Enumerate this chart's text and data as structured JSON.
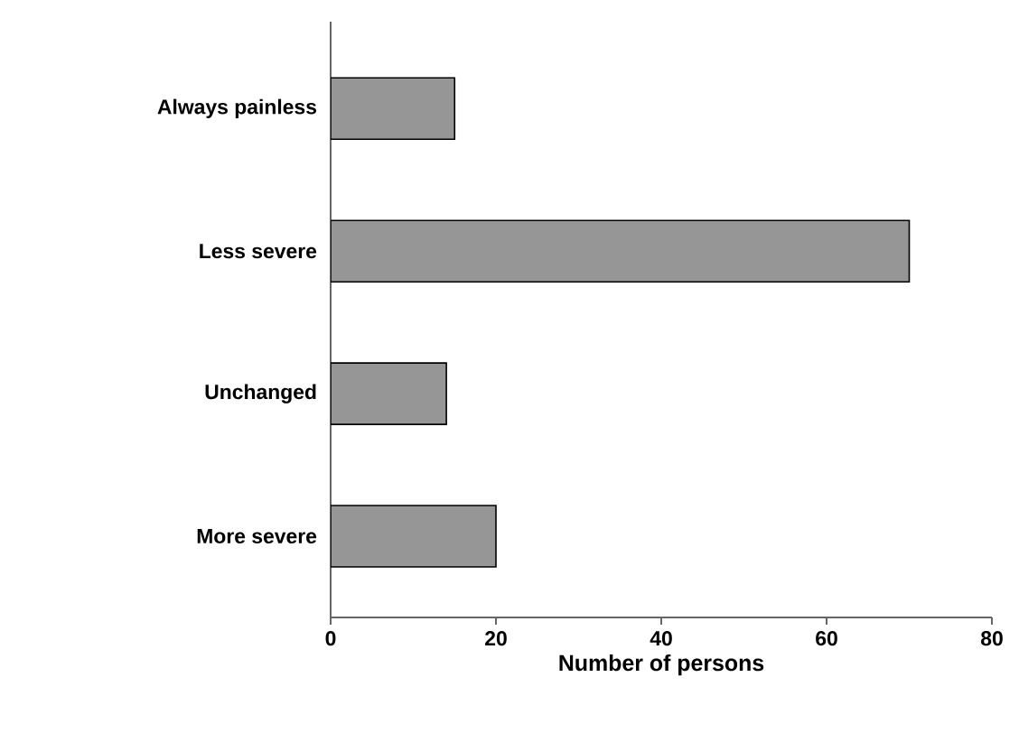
{
  "chart_data": {
    "type": "bar",
    "orientation": "horizontal",
    "categories": [
      "Always painless",
      "Less severe",
      "Unchanged",
      "More severe"
    ],
    "values": [
      15,
      70,
      14,
      20
    ],
    "color": "#969696",
    "xlabel": "Number of persons",
    "xlim": [
      0,
      80
    ],
    "xticks": [
      0,
      20,
      40,
      60,
      80
    ]
  }
}
